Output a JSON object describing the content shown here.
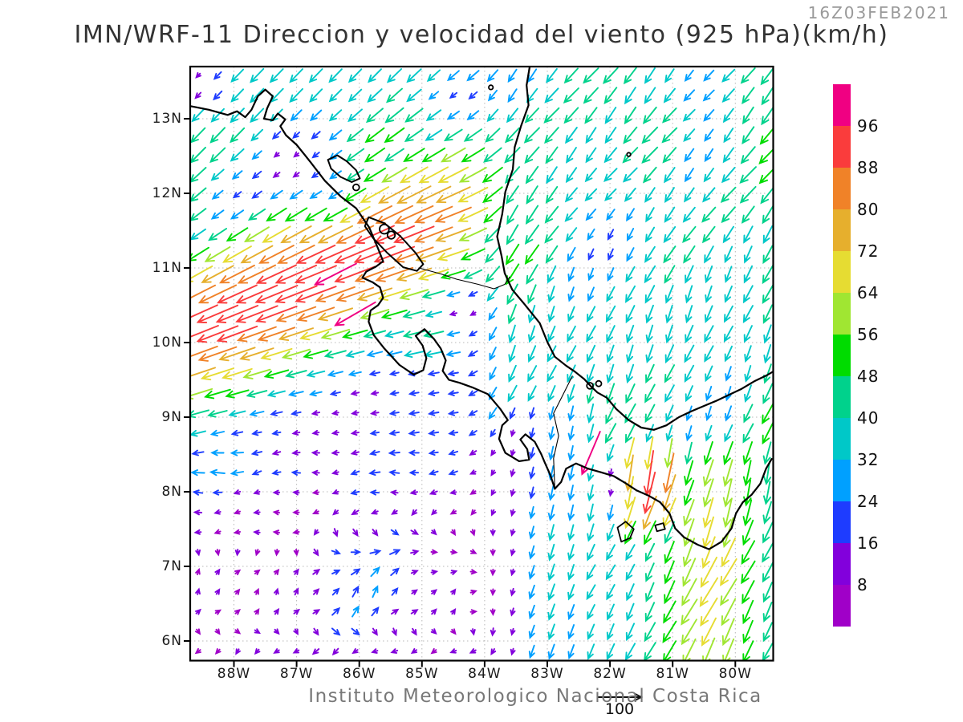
{
  "header": {
    "run_datetime": "16Z03FEB2021",
    "title": "IMN/WRF-11 Direccion y velocidad del viento (925 hPa)(km/h)"
  },
  "footer": {
    "credit": "Instituto Meteorologico Nacional Costa Rica",
    "reference_vector_label": "100"
  },
  "chart_data": {
    "type": "vector-field-map",
    "model": "IMN/WRF-11",
    "variable": "Direccion y velocidad del viento",
    "level": "925 hPa",
    "units": "km/h",
    "valid_time": "16Z03FEB2021",
    "x_ticks": [
      "88W",
      "87W",
      "86W",
      "85W",
      "84W",
      "83W",
      "82W",
      "81W",
      "80W"
    ],
    "y_ticks": [
      "13N",
      "12N",
      "11N",
      "10N",
      "9N",
      "8N",
      "7N",
      "6N"
    ],
    "lon_w_range": [
      88.7,
      79.4
    ],
    "lat_n_range": [
      5.74,
      13.7
    ],
    "grid": {
      "cols": 30,
      "rows": 30
    },
    "reference_vector_kmh": 100,
    "colorbar": {
      "units": "km/h",
      "levels": [
        8,
        16,
        24,
        32,
        40,
        48,
        56,
        64,
        72,
        80,
        88,
        96
      ],
      "colors_low_to_high": [
        "#A000C8",
        "#8200DC",
        "#1E3CFF",
        "#00A0FF",
        "#00C8C8",
        "#00D28C",
        "#00DC00",
        "#A0E632",
        "#E6DC32",
        "#E6AF2D",
        "#F08228",
        "#FA3C3C",
        "#F00082"
      ]
    },
    "wind_features": {
      "trades_base_kmh": 40,
      "papagayo_jet": {
        "axis_lat": 11.0,
        "axis_lon_ref": 86.4,
        "axis_slope": -0.38,
        "core": 95,
        "core_falloff": 2,
        "core_lon_ref": 87.3,
        "east_decay": [
          85.3,
          84.1,
          12
        ],
        "sigma": 1.35
      },
      "coastal_ridge": [
        85.0,
        10.05,
        0.85,
        0.55,
        46
      ],
      "caribbean": {
        "base": 36,
        "phi": 203
      },
      "gap_jet": {
        "lon": 81.4,
        "sigma": 0.6,
        "lat_center": 8.25,
        "core": 95
      },
      "se_outflow": {
        "base": 36,
        "bump_lon": 80.35,
        "bump": 20,
        "streak": [
          80.45,
          7.0,
          0.5,
          1.1,
          12
        ]
      },
      "weak_gyre": {
        "patch_nw": [
          85.75,
          6.35,
          0.9,
          0.55,
          12
        ],
        "patch_ne": [
          85.6,
          7.1,
          0.9,
          0.5,
          9
        ]
      },
      "calm_dips": [
        [
          88.55,
          13.5,
          0.45,
          0.35,
          0.78
        ],
        [
          87.1,
          12.5,
          0.6,
          0.45,
          0.72
        ],
        [
          86.5,
          12.05,
          0.45,
          0.4,
          0.45
        ],
        [
          88.05,
          12.05,
          0.4,
          0.35,
          0.45
        ],
        [
          84.3,
          10.45,
          0.38,
          0.33,
          0.75
        ],
        [
          84.55,
          13.35,
          0.55,
          0.3,
          0.62
        ],
        [
          81.97,
          8.1,
          0.26,
          0.3,
          0.8
        ]
      ],
      "overrides": [
        [
          86.28,
          10.82,
          0.19,
          99,
          243
        ],
        [
          85.92,
          10.35,
          0.19,
          99,
          240
        ],
        [
          82.38,
          8.62,
          0.17,
          99,
          203
        ]
      ]
    },
    "map": {
      "coastlines": [
        [
          [
            88.7,
            13.17
          ],
          [
            88.4,
            13.12
          ],
          [
            88.1,
            13.05
          ],
          [
            87.95,
            13.1
          ],
          [
            87.82,
            13.02
          ],
          [
            87.72,
            13.12
          ],
          [
            87.62,
            13.3
          ],
          [
            87.5,
            13.39
          ],
          [
            87.38,
            13.3
          ],
          [
            87.47,
            13.14
          ],
          [
            87.52,
            13.0
          ],
          [
            87.38,
            12.98
          ],
          [
            87.3,
            13.07
          ],
          [
            87.18,
            12.99
          ],
          [
            87.26,
            12.9
          ],
          [
            87.17,
            12.78
          ],
          [
            87.0,
            12.65
          ],
          [
            86.78,
            12.42
          ],
          [
            86.55,
            12.17
          ],
          [
            86.3,
            11.96
          ],
          [
            86.05,
            11.8
          ],
          [
            85.84,
            11.54
          ],
          [
            85.7,
            11.26
          ],
          [
            85.62,
            11.09
          ],
          [
            85.73,
            11.02
          ],
          [
            85.89,
            10.95
          ],
          [
            85.95,
            10.87
          ],
          [
            85.79,
            10.81
          ],
          [
            85.67,
            10.74
          ],
          [
            85.62,
            10.6
          ],
          [
            85.7,
            10.5
          ],
          [
            85.82,
            10.43
          ],
          [
            85.85,
            10.28
          ],
          [
            85.77,
            10.1
          ],
          [
            85.6,
            9.92
          ],
          [
            85.36,
            9.7
          ],
          [
            85.13,
            9.57
          ],
          [
            84.98,
            9.63
          ],
          [
            84.93,
            9.79
          ],
          [
            84.99,
            9.96
          ],
          [
            85.1,
            10.09
          ],
          [
            84.96,
            10.18
          ],
          [
            84.81,
            10.05
          ],
          [
            84.7,
            9.92
          ],
          [
            84.62,
            9.76
          ],
          [
            84.67,
            9.62
          ],
          [
            84.57,
            9.5
          ],
          [
            84.4,
            9.46
          ],
          [
            84.2,
            9.4
          ],
          [
            83.95,
            9.31
          ],
          [
            83.75,
            9.11
          ],
          [
            83.63,
            8.96
          ],
          [
            83.72,
            8.89
          ],
          [
            83.77,
            8.71
          ],
          [
            83.67,
            8.52
          ],
          [
            83.45,
            8.41
          ],
          [
            83.29,
            8.43
          ],
          [
            83.32,
            8.57
          ],
          [
            83.43,
            8.7
          ],
          [
            83.35,
            8.77
          ],
          [
            83.2,
            8.67
          ],
          [
            83.1,
            8.51
          ],
          [
            83.04,
            8.39
          ],
          [
            82.95,
            8.22
          ],
          [
            82.88,
            8.04
          ],
          [
            82.78,
            8.13
          ],
          [
            82.7,
            8.31
          ],
          [
            82.54,
            8.38
          ],
          [
            82.35,
            8.31
          ],
          [
            82.14,
            8.26
          ],
          [
            81.94,
            8.21
          ],
          [
            81.74,
            8.11
          ],
          [
            81.58,
            8.02
          ],
          [
            81.39,
            7.95
          ],
          [
            81.2,
            7.86
          ],
          [
            81.05,
            7.71
          ],
          [
            80.96,
            7.51
          ],
          [
            80.82,
            7.39
          ],
          [
            80.6,
            7.29
          ],
          [
            80.42,
            7.23
          ],
          [
            80.22,
            7.33
          ],
          [
            80.06,
            7.51
          ],
          [
            79.99,
            7.71
          ],
          [
            79.88,
            7.86
          ],
          [
            79.74,
            7.96
          ],
          [
            79.6,
            8.11
          ],
          [
            79.51,
            8.31
          ],
          [
            79.42,
            8.44
          ]
        ],
        [
          [
            83.28,
            13.7
          ],
          [
            83.33,
            13.45
          ],
          [
            83.3,
            13.18
          ],
          [
            83.42,
            12.9
          ],
          [
            83.52,
            12.62
          ],
          [
            83.55,
            12.32
          ],
          [
            83.67,
            12.02
          ],
          [
            83.72,
            11.72
          ],
          [
            83.8,
            11.42
          ],
          [
            83.73,
            11.16
          ],
          [
            83.68,
            10.93
          ],
          [
            83.56,
            10.71
          ],
          [
            83.36,
            10.51
          ],
          [
            83.12,
            10.26
          ],
          [
            83.0,
            10.01
          ],
          [
            82.88,
            9.81
          ],
          [
            82.7,
            9.69
          ],
          [
            82.56,
            9.61
          ],
          [
            82.41,
            9.51
          ],
          [
            82.3,
            9.41
          ],
          [
            82.2,
            9.33
          ],
          [
            82.05,
            9.26
          ],
          [
            81.9,
            9.11
          ],
          [
            81.7,
            8.96
          ],
          [
            81.5,
            8.86
          ],
          [
            81.3,
            8.83
          ],
          [
            81.1,
            8.89
          ],
          [
            80.9,
            9.0
          ],
          [
            80.7,
            9.08
          ],
          [
            80.5,
            9.15
          ],
          [
            80.3,
            9.22
          ],
          [
            80.1,
            9.3
          ],
          [
            79.9,
            9.38
          ],
          [
            79.7,
            9.48
          ],
          [
            79.5,
            9.56
          ],
          [
            79.4,
            9.61
          ]
        ]
      ],
      "lakes": [
        [
          [
            86.5,
            12.45
          ],
          [
            86.35,
            12.51
          ],
          [
            86.2,
            12.43
          ],
          [
            86.05,
            12.31
          ],
          [
            85.99,
            12.2
          ],
          [
            86.12,
            12.15
          ],
          [
            86.3,
            12.22
          ],
          [
            86.45,
            12.33
          ]
        ],
        [
          [
            85.85,
            11.68
          ],
          [
            85.6,
            11.6
          ],
          [
            85.35,
            11.43
          ],
          [
            85.1,
            11.2
          ],
          [
            84.98,
            11.05
          ],
          [
            85.08,
            10.96
          ],
          [
            85.3,
            11.01
          ],
          [
            85.55,
            11.2
          ],
          [
            85.78,
            11.4
          ],
          [
            85.91,
            11.56
          ]
        ]
      ],
      "thin_lines": [
        [
          [
            85.05,
            11.0
          ],
          [
            84.7,
            10.92
          ],
          [
            84.45,
            10.85
          ],
          [
            84.1,
            10.78
          ],
          [
            83.85,
            10.72
          ],
          [
            83.68,
            10.78
          ],
          [
            83.6,
            10.88
          ]
        ],
        [
          [
            82.6,
            9.55
          ],
          [
            82.75,
            9.3
          ],
          [
            82.9,
            9.05
          ],
          [
            82.82,
            8.75
          ],
          [
            82.9,
            8.45
          ],
          [
            82.88,
            8.03
          ]
        ]
      ],
      "island_circles": [
        [
          85.6,
          11.52,
          0.075
        ],
        [
          85.49,
          11.44,
          0.06
        ],
        [
          86.05,
          12.08,
          0.05
        ],
        [
          82.32,
          9.42,
          0.05
        ],
        [
          82.18,
          9.45,
          0.045
        ],
        [
          83.9,
          13.42,
          0.035
        ],
        [
          81.7,
          12.52,
          0.03
        ]
      ],
      "island_polys": [
        [
          [
            81.88,
            7.52
          ],
          [
            81.75,
            7.6
          ],
          [
            81.62,
            7.5
          ],
          [
            81.68,
            7.38
          ],
          [
            81.82,
            7.33
          ]
        ],
        [
          [
            81.28,
            7.55
          ],
          [
            81.15,
            7.58
          ],
          [
            81.12,
            7.5
          ],
          [
            81.25,
            7.47
          ]
        ]
      ]
    }
  },
  "colors": {
    "coast": "#000000",
    "graticule": "#b8b8b8",
    "title": "#333333",
    "datetime": "#999999",
    "footer": "#787878"
  }
}
